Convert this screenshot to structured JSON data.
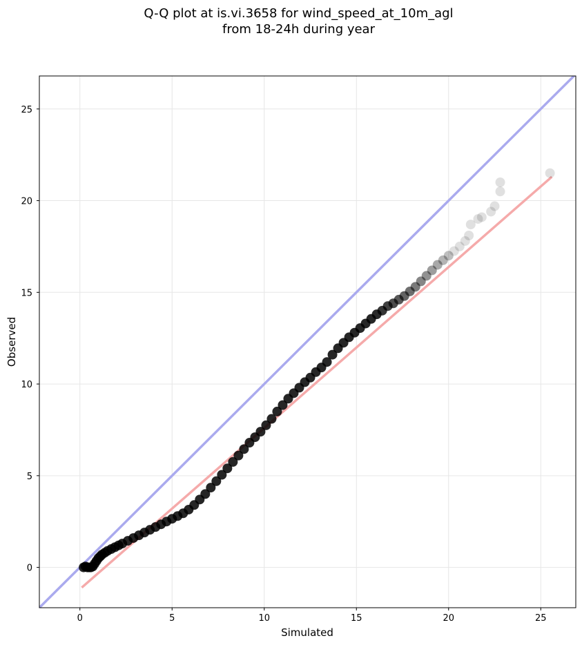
{
  "chart_data": {
    "type": "scatter",
    "title": [
      "Q-Q plot at is.vi.3658 for wind_speed_at_10m_agl",
      "from 18-24h during year"
    ],
    "xlabel": "Simulated",
    "ylabel": "Observed",
    "xlim": [
      -2.2,
      26.9
    ],
    "ylim": [
      -2.2,
      26.8
    ],
    "xticks": [
      0,
      5,
      10,
      15,
      20,
      25
    ],
    "yticks": [
      0,
      5,
      10,
      15,
      20,
      25
    ],
    "grid": true,
    "reference_lines": [
      {
        "kind": "identity",
        "color": "#aaaaee",
        "from": [
          -2.2,
          -2.2
        ],
        "to": [
          26.9,
          26.9
        ]
      },
      {
        "kind": "fit",
        "color": "#f5aaaa",
        "from": [
          0.1,
          -1.1
        ],
        "to": [
          25.6,
          21.3
        ]
      }
    ],
    "points": [
      [
        0.2,
        0.0
      ],
      [
        0.3,
        0.05
      ],
      [
        0.4,
        0.0
      ],
      [
        0.5,
        0.0
      ],
      [
        0.6,
        0.0
      ],
      [
        0.7,
        0.05
      ],
      [
        0.8,
        0.2
      ],
      [
        0.9,
        0.35
      ],
      [
        1.0,
        0.5
      ],
      [
        1.1,
        0.6
      ],
      [
        1.2,
        0.7
      ],
      [
        1.35,
        0.8
      ],
      [
        1.5,
        0.9
      ],
      [
        1.7,
        1.0
      ],
      [
        1.9,
        1.1
      ],
      [
        2.1,
        1.2
      ],
      [
        2.3,
        1.3
      ],
      [
        2.6,
        1.45
      ],
      [
        2.9,
        1.6
      ],
      [
        3.2,
        1.75
      ],
      [
        3.5,
        1.9
      ],
      [
        3.8,
        2.05
      ],
      [
        4.1,
        2.2
      ],
      [
        4.4,
        2.35
      ],
      [
        4.7,
        2.5
      ],
      [
        5.0,
        2.65
      ],
      [
        5.3,
        2.8
      ],
      [
        5.6,
        2.95
      ],
      [
        5.9,
        3.15
      ],
      [
        6.2,
        3.4
      ],
      [
        6.5,
        3.7
      ],
      [
        6.8,
        4.0
      ],
      [
        7.1,
        4.35
      ],
      [
        7.4,
        4.7
      ],
      [
        7.7,
        5.05
      ],
      [
        8.0,
        5.4
      ],
      [
        8.3,
        5.75
      ],
      [
        8.6,
        6.1
      ],
      [
        8.9,
        6.45
      ],
      [
        9.2,
        6.8
      ],
      [
        9.5,
        7.1
      ],
      [
        9.8,
        7.4
      ],
      [
        10.1,
        7.75
      ],
      [
        10.4,
        8.1
      ],
      [
        10.7,
        8.5
      ],
      [
        11.0,
        8.85
      ],
      [
        11.3,
        9.2
      ],
      [
        11.6,
        9.5
      ],
      [
        11.9,
        9.8
      ],
      [
        12.2,
        10.1
      ],
      [
        12.5,
        10.35
      ],
      [
        12.8,
        10.65
      ],
      [
        13.1,
        10.9
      ],
      [
        13.4,
        11.2
      ],
      [
        13.7,
        11.6
      ],
      [
        14.0,
        11.95
      ],
      [
        14.3,
        12.25
      ],
      [
        14.6,
        12.55
      ],
      [
        14.9,
        12.8
      ],
      [
        15.2,
        13.05
      ],
      [
        15.5,
        13.3
      ],
      [
        15.8,
        13.55
      ],
      [
        16.1,
        13.8
      ],
      [
        16.4,
        14.0
      ],
      [
        16.7,
        14.25
      ],
      [
        17.0,
        14.4
      ],
      [
        17.3,
        14.6
      ],
      [
        17.6,
        14.8
      ],
      [
        17.9,
        15.05
      ],
      [
        18.2,
        15.3
      ],
      [
        18.5,
        15.6
      ],
      [
        18.8,
        15.9
      ],
      [
        19.1,
        16.2
      ],
      [
        19.4,
        16.5
      ],
      [
        19.7,
        16.75
      ],
      [
        20.0,
        17.0
      ],
      [
        20.3,
        17.25
      ],
      [
        20.6,
        17.5
      ],
      [
        20.9,
        17.8
      ],
      [
        21.1,
        18.1
      ],
      [
        21.2,
        18.7
      ],
      [
        21.6,
        19.0
      ],
      [
        21.8,
        19.1
      ],
      [
        22.3,
        19.4
      ],
      [
        22.5,
        19.7
      ],
      [
        22.8,
        20.5
      ],
      [
        22.8,
        21.0
      ],
      [
        25.5,
        21.5
      ]
    ]
  }
}
